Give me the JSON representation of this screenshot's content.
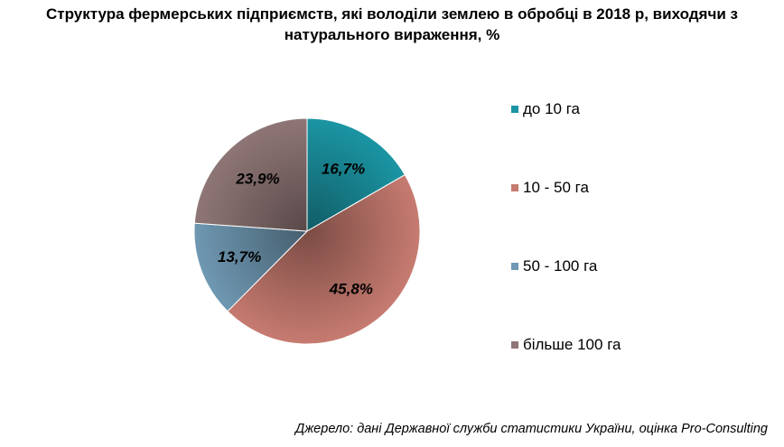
{
  "chart_data": {
    "type": "pie",
    "title": "Структура фермерських підприємств, які володіли землею в обробці в 2018 р, виходячи з натурального вираження, %",
    "categories": [
      "до 10 га",
      "10 - 50 га",
      "50 - 100 га",
      "більше 100 га"
    ],
    "values": [
      16.7,
      45.8,
      13.7,
      23.9
    ],
    "labels": [
      "16,7%",
      "45,8%",
      "13,7%",
      "23,9%"
    ],
    "colors": [
      "#1b95a3",
      "#c77b70",
      "#6f98b2",
      "#8f7676"
    ],
    "legend_position": "right"
  },
  "source": "Джерело: дані Державної служби статистики України, оцінка Pro-Consulting"
}
